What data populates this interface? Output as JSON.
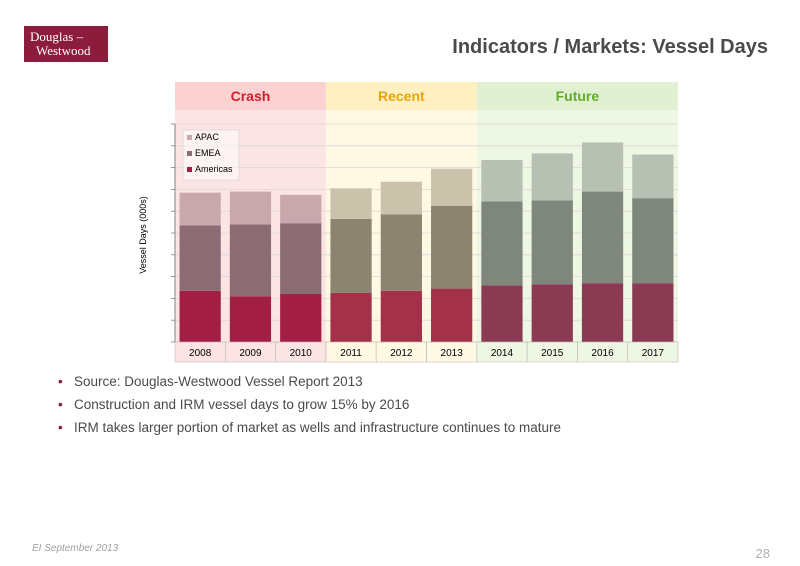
{
  "logo": {
    "line1": "Douglas –",
    "line2": "Westwood"
  },
  "title": "Indicators / Markets: Vessel Days",
  "colors": {
    "brand": "#8c1c3c",
    "crash_band": "#fde4e4",
    "recent_band": "#fff8e2",
    "future_band": "#eef6e4"
  },
  "chart_data": {
    "type": "bar",
    "stacked": true,
    "ylabel": "Vessel Days (000s)",
    "ylim": [
      0,
      100
    ],
    "grid": true,
    "legend_position": "top-left",
    "categories": [
      "2008",
      "2009",
      "2010",
      "2011",
      "2012",
      "2013",
      "2014",
      "2015",
      "2016",
      "2017"
    ],
    "periods": [
      {
        "name": "Crash",
        "start": "2008",
        "end": "2010",
        "text_color": "#d21f2b",
        "header_color": "#fbd1d1",
        "band_color": "#fde4e4"
      },
      {
        "name": "Recent",
        "start": "2011",
        "end": "2013",
        "text_color": "#e8a40c",
        "header_color": "#fff0c2",
        "band_color": "#fff8e2"
      },
      {
        "name": "Future",
        "start": "2014",
        "end": "2017",
        "text_color": "#5fae28",
        "header_color": "#e1f0d2",
        "band_color": "#eef6e4"
      }
    ],
    "series": [
      {
        "name": "Americas",
        "colors": [
          "#a31e45",
          "#a31e45",
          "#a31e45",
          "#a33149",
          "#a33149",
          "#a33149",
          "#8a3a52",
          "#8a3a52",
          "#8a3a52",
          "#8a3a52"
        ],
        "values": [
          23.5,
          21,
          22,
          22.5,
          23.5,
          24.5,
          26,
          26.5,
          27,
          27
        ]
      },
      {
        "name": "EMEA",
        "colors": [
          "#8c6c74",
          "#8c6c74",
          "#8c6c74",
          "#8c8470",
          "#8c8470",
          "#8c8470",
          "#7f877c",
          "#7f877c",
          "#7f877c",
          "#7f877c"
        ],
        "values": [
          30,
          33,
          32.5,
          34,
          35,
          38,
          38.5,
          38.5,
          42,
          39
        ]
      },
      {
        "name": "APAC",
        "colors": [
          "#c9a8ad",
          "#c9a8ad",
          "#c9a8ad",
          "#cbc2ac",
          "#cbc2ac",
          "#cbc2ac",
          "#b7c0b2",
          "#b7c0b2",
          "#b7c0b2",
          "#b7c0b2"
        ],
        "values": [
          15,
          15,
          13,
          14,
          15,
          17,
          19,
          21.5,
          22.5,
          20
        ]
      }
    ]
  },
  "bullets": [
    "Source: Douglas-Westwood Vessel Report 2013",
    "Construction and IRM vessel days to grow 15% by 2016",
    "IRM takes larger portion of market as wells and infrastructure continues to mature"
  ],
  "footer": "EI September 2013",
  "page_number": "28"
}
